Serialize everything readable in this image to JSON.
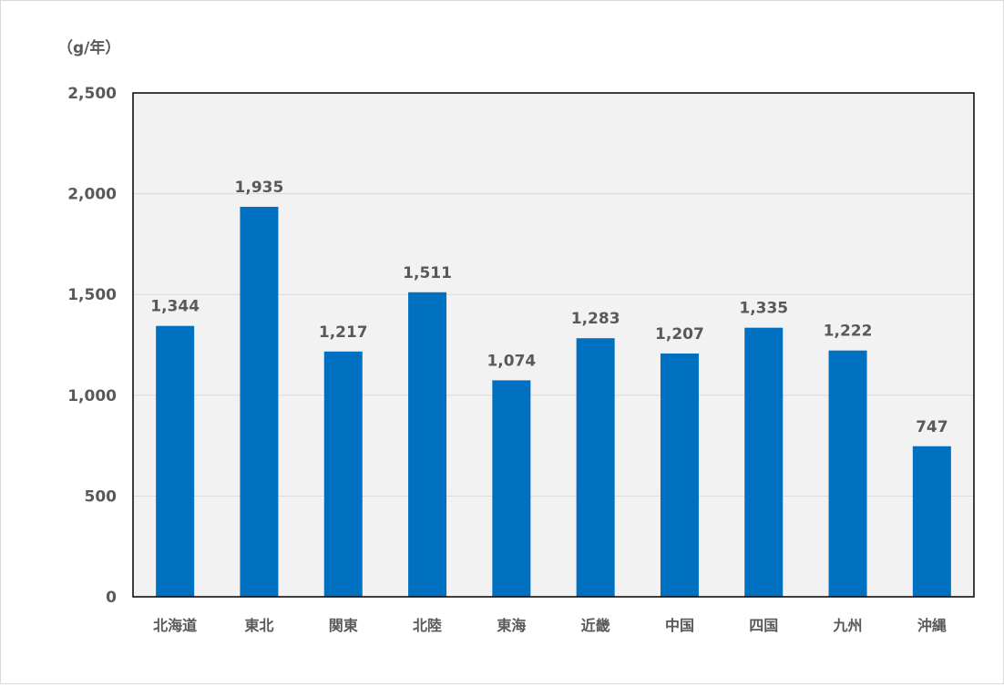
{
  "chart_data": {
    "type": "bar",
    "unit": "（g/年）",
    "categories": [
      "北海道",
      "東北",
      "関東",
      "北陸",
      "東海",
      "近畿",
      "中国",
      "四国",
      "九州",
      "沖縄"
    ],
    "values": [
      1344,
      1935,
      1217,
      1511,
      1074,
      1283,
      1207,
      1335,
      1222,
      747
    ],
    "value_labels": [
      "1,344",
      "1,935",
      "1,217",
      "1,511",
      "1,074",
      "1,283",
      "1,207",
      "1,335",
      "1,222",
      "747"
    ],
    "ylim": [
      0,
      2500
    ],
    "yticks": [
      0,
      500,
      1000,
      1500,
      2000,
      2500
    ],
    "ytick_labels": [
      "0",
      "500",
      "1,000",
      "1,500",
      "2,000",
      "2,500"
    ],
    "grid": true,
    "legend": "none",
    "colors": {
      "bar": "#0070c0",
      "plot_background": "#f2f2f2",
      "gridline": "#d9d9d9",
      "plot_border": "#000000",
      "text": "#595959"
    }
  }
}
